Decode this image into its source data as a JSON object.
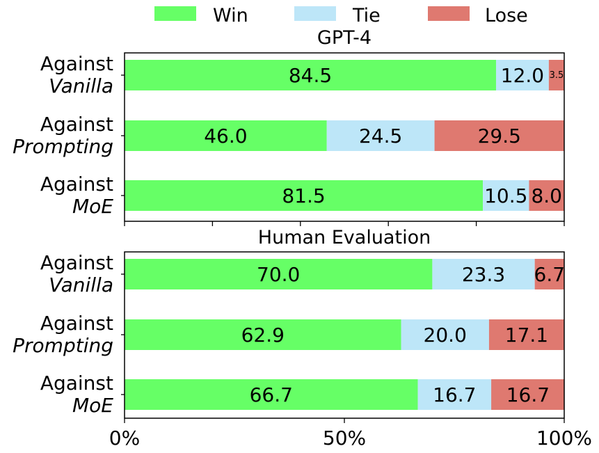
{
  "legend": {
    "placement": "top-center",
    "items": [
      {
        "label": "Win",
        "color": "#66ff66"
      },
      {
        "label": "Tie",
        "color": "#bde6f8"
      },
      {
        "label": "Lose",
        "color": "#df7970"
      }
    ]
  },
  "chart_data": [
    {
      "type": "bar",
      "orientation": "horizontal",
      "stacked": true,
      "title": "GPT-4",
      "categories": [
        {
          "line1": "Against",
          "line2": "Vanilla"
        },
        {
          "line1": "Against",
          "line2": "Prompting"
        },
        {
          "line1": "Against",
          "line2": "MoE"
        }
      ],
      "series": [
        {
          "name": "Win",
          "color": "#66ff66",
          "values": [
            84.5,
            46.0,
            81.5
          ],
          "labels": [
            "84.5",
            "46.0",
            "81.5"
          ]
        },
        {
          "name": "Tie",
          "color": "#bde6f8",
          "values": [
            12.0,
            24.5,
            10.5
          ],
          "labels": [
            "12.0",
            "24.5",
            "10.5"
          ]
        },
        {
          "name": "Lose",
          "color": "#df7970",
          "values": [
            3.5,
            29.5,
            8.0
          ],
          "labels": [
            "3.5",
            "29.5",
            "8.0"
          ]
        }
      ],
      "xlim": [
        0,
        100
      ],
      "xticks": [],
      "grid": false
    },
    {
      "type": "bar",
      "orientation": "horizontal",
      "stacked": true,
      "title": "Human Evaluation",
      "categories": [
        {
          "line1": "Against",
          "line2": "Vanilla"
        },
        {
          "line1": "Against",
          "line2": "Prompting"
        },
        {
          "line1": "Against",
          "line2": "MoE"
        }
      ],
      "series": [
        {
          "name": "Win",
          "color": "#66ff66",
          "values": [
            70.0,
            62.9,
            66.7
          ],
          "labels": [
            "70.0",
            "62.9",
            "66.7"
          ]
        },
        {
          "name": "Tie",
          "color": "#bde6f8",
          "values": [
            23.3,
            20.0,
            16.7
          ],
          "labels": [
            "23.3",
            "20.0",
            "16.7"
          ]
        },
        {
          "name": "Lose",
          "color": "#df7970",
          "values": [
            6.7,
            17.1,
            16.7
          ],
          "labels": [
            "6.7",
            "17.1",
            "16.7"
          ]
        }
      ],
      "xlim": [
        0,
        100
      ],
      "xticks": [
        {
          "value": 0,
          "label": "0%"
        },
        {
          "value": 50,
          "label": "50%"
        },
        {
          "value": 100,
          "label": "100%"
        }
      ],
      "grid": false
    }
  ]
}
